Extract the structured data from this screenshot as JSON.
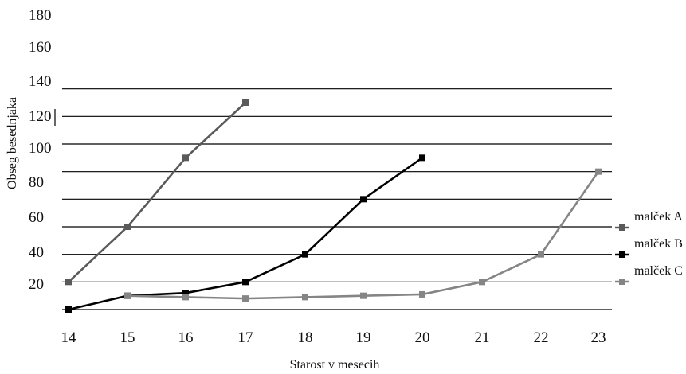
{
  "chart_data": {
    "type": "line",
    "xlabel": "Starost v mesecih",
    "ylabel": "Obseg besednjaka",
    "x": [
      14,
      15,
      16,
      17,
      18,
      19,
      20,
      21,
      22,
      23
    ],
    "y_ticks": [
      "180",
      "160",
      "140",
      "120",
      "100",
      "80",
      "60",
      "40",
      "20"
    ],
    "ylim": [
      0,
      180
    ],
    "grid": true,
    "legend_position": "right",
    "series": [
      {
        "name": "malček A",
        "color": "#5a5a5a",
        "marker": "square",
        "x": [
          14,
          15,
          16,
          17
        ],
        "values": [
          20,
          60,
          110,
          150
        ]
      },
      {
        "name": "malček B",
        "color": "#000000",
        "marker": "square",
        "x": [
          14,
          15,
          16,
          17,
          18,
          19,
          20
        ],
        "values": [
          0,
          10,
          12,
          20,
          40,
          80,
          110
        ]
      },
      {
        "name": "malček C",
        "color": "#858585",
        "marker": "square",
        "x": [
          15,
          16,
          17,
          18,
          19,
          20,
          21,
          22,
          23
        ],
        "values": [
          10,
          9,
          8,
          9,
          10,
          11,
          20,
          40,
          100
        ]
      }
    ]
  }
}
